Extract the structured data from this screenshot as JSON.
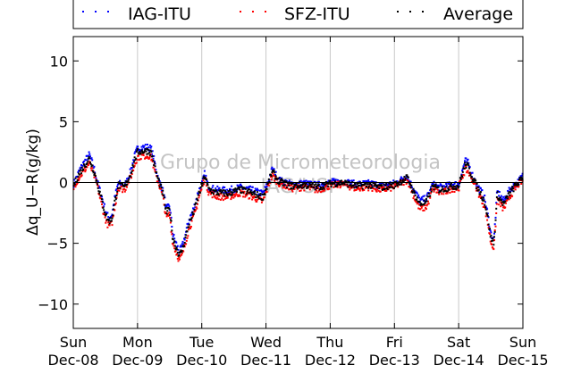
{
  "chart_data": {
    "type": "scatter",
    "title": "",
    "ylabel": "Δq_U−R(g/kg)",
    "ylim": [
      -12,
      12
    ],
    "yticks": [
      -10,
      -5,
      0,
      5,
      10
    ],
    "xlim": [
      0,
      7
    ],
    "xticks": [
      {
        "value": 0,
        "day": "Sun",
        "date": "Dec-08"
      },
      {
        "value": 1,
        "day": "Mon",
        "date": "Dec-09"
      },
      {
        "value": 2,
        "day": "Tue",
        "date": "Dec-10"
      },
      {
        "value": 3,
        "day": "Wed",
        "date": "Dec-11"
      },
      {
        "value": 4,
        "day": "Thu",
        "date": "Dec-12"
      },
      {
        "value": 5,
        "day": "Fri",
        "date": "Dec-13"
      },
      {
        "value": 6,
        "day": "Sat",
        "date": "Dec-14"
      },
      {
        "value": 7,
        "day": "Sun",
        "date": "Dec-15"
      }
    ],
    "grid": "vertical",
    "zero_line": true,
    "legend": "top",
    "watermark": [
      "Grupo de Micrometeorologia",
      "IAG/USP"
    ],
    "series": [
      {
        "name": "IAG-ITU",
        "color": "#0000ff",
        "offset": 0.3
      },
      {
        "name": "SFZ-ITU",
        "color": "#ff0000",
        "offset": -0.4
      },
      {
        "name": "Average",
        "color": "#000000",
        "offset": 0
      }
    ],
    "x": [
      0,
      0.1,
      0.2,
      0.25,
      0.33,
      0.45,
      0.5,
      0.55,
      0.6,
      0.65,
      0.7,
      0.8,
      0.9,
      0.95,
      1.0,
      1.1,
      1.18,
      1.22,
      1.3,
      1.4,
      1.45,
      1.5,
      1.55,
      1.65,
      1.7,
      1.75,
      1.8,
      1.85,
      1.9,
      1.95,
      2.0,
      2.05,
      2.1,
      2.2,
      2.4,
      2.6,
      2.75,
      2.85,
      2.95,
      3.0,
      3.1,
      3.2,
      3.4,
      3.6,
      3.8,
      4.0,
      4.2,
      4.4,
      4.6,
      4.8,
      5.0,
      5.2,
      5.3,
      5.4,
      5.5,
      5.6,
      5.7,
      5.8,
      5.9,
      6.0,
      6.05,
      6.1,
      6.15,
      6.2,
      6.3,
      6.4,
      6.45,
      6.5,
      6.55,
      6.6,
      6.7,
      6.8,
      6.9,
      7.0
    ],
    "y": [
      -0.3,
      0.8,
      1.6,
      2.0,
      0.8,
      -1.6,
      -2.6,
      -3.2,
      -3.0,
      -1.5,
      -0.2,
      -0.4,
      0.8,
      1.8,
      2.5,
      2.6,
      2.6,
      2.4,
      0.6,
      -1.0,
      -2.5,
      -2.2,
      -4.6,
      -6.0,
      -5.5,
      -4.5,
      -3.4,
      -2.8,
      -2.0,
      -1.0,
      -0.3,
      0.6,
      -0.5,
      -0.8,
      -0.9,
      -0.6,
      -0.8,
      -1.0,
      -1.2,
      -0.6,
      0.9,
      0.1,
      -0.3,
      -0.2,
      -0.4,
      -0.1,
      0.0,
      -0.3,
      -0.2,
      -0.4,
      -0.2,
      0.4,
      -0.8,
      -1.8,
      -1.6,
      -0.3,
      -0.6,
      -0.5,
      -0.3,
      -0.3,
      0.6,
      1.5,
      1.3,
      0.6,
      -0.5,
      -1.5,
      -2.8,
      -4.5,
      -5.0,
      -1.0,
      -1.8,
      -0.8,
      -0.2,
      0.4
    ]
  }
}
